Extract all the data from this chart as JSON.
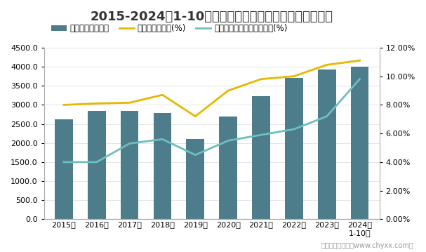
{
  "title": "2015-2024年1-10月农副食品加工业企业应收账款统计图",
  "years": [
    "2015年",
    "2016年",
    "2017年",
    "2018年",
    "2019年",
    "2020年",
    "2021年",
    "2022年",
    "2023年",
    "2024年\n1-10月"
  ],
  "bar_values": [
    2620,
    2840,
    2840,
    2790,
    2110,
    2700,
    3230,
    3710,
    3920,
    4010
  ],
  "line1_values": [
    8.0,
    8.1,
    8.15,
    8.7,
    7.2,
    9.0,
    9.8,
    10.0,
    10.8,
    11.1
  ],
  "line2_values": [
    4.0,
    4.0,
    5.3,
    5.6,
    4.5,
    5.5,
    5.9,
    6.3,
    7.2,
    9.8
  ],
  "bar_color": "#4d7c8a",
  "line1_color": "#e6b800",
  "line2_color": "#6dbfbf",
  "legend_labels": [
    "应收账款（亿元）",
    "应收账款百分比(%)",
    "应收账款占营业收入的比重(%)"
  ],
  "ylim_left": [
    0,
    4500
  ],
  "ylim_right": [
    0,
    12
  ],
  "yticks_left": [
    0.0,
    500.0,
    1000.0,
    1500.0,
    2000.0,
    2500.0,
    3000.0,
    3500.0,
    4000.0,
    4500.0
  ],
  "yticks_right": [
    0,
    2,
    4,
    6,
    8,
    10,
    12
  ],
  "ytick_right_labels": [
    "0.00%",
    "2.00%",
    "4.00%",
    "6.00%",
    "8.00%",
    "10.00%",
    "12.00%"
  ],
  "footer": "制图：智研咨询（www.chyxx.com）",
  "background_color": "#ffffff",
  "title_fontsize": 13,
  "axis_fontsize": 8,
  "legend_fontsize": 8.5
}
